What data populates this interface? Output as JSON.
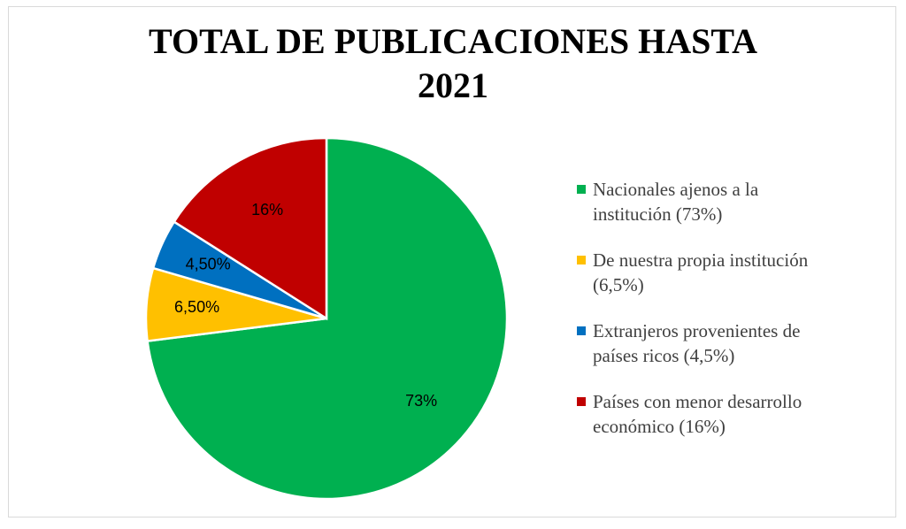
{
  "chart_data": {
    "type": "pie",
    "title": "TOTAL DE PUBLICACIONES HASTA 2021",
    "title_lines": [
      "TOTAL DE PUBLICACIONES HASTA",
      "2021"
    ],
    "slices": [
      {
        "label": "Nacionales ajenos a la institución (73%)",
        "label_lines": [
          "Nacionales ajenos a la",
          "institución (73%)"
        ],
        "value": 73,
        "data_label": "73%",
        "color": "#00B050"
      },
      {
        "label": "De nuestra propia institución (6,5%)",
        "label_lines": [
          "De nuestra propia institución",
          "(6,5%)"
        ],
        "value": 6.5,
        "data_label": "6,50%",
        "color": "#FFC000"
      },
      {
        "label": "Extranjeros provenientes de países ricos (4,5%)",
        "label_lines": [
          "Extranjeros provenientes de",
          "países ricos (4,5%)"
        ],
        "value": 4.5,
        "data_label": "4,50%",
        "color": "#0070C0"
      },
      {
        "label": "Países con menor desarrollo económico (16%)",
        "label_lines": [
          "Países con menor desarrollo",
          "económico (16%)"
        ],
        "value": 16,
        "data_label": "16%",
        "color": "#C00000"
      }
    ],
    "legend_position": "right",
    "start": "top",
    "direction": "clockwise"
  }
}
